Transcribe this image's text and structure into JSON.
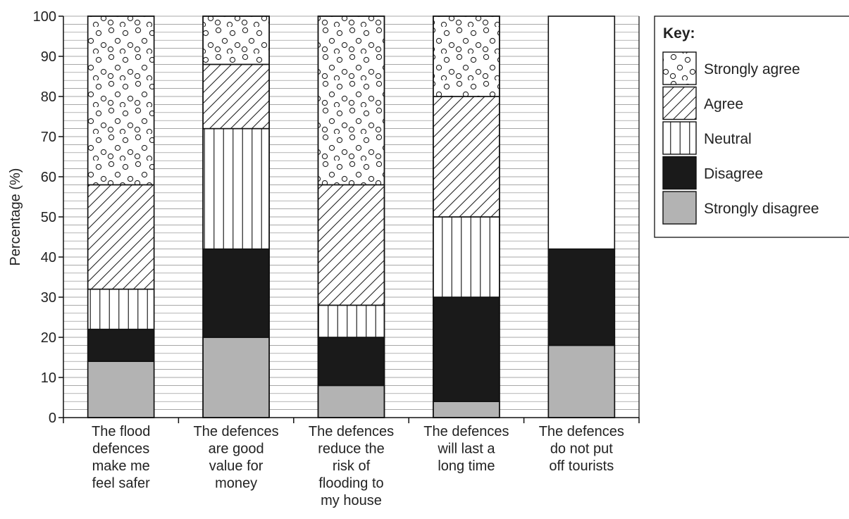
{
  "chart_data": {
    "type": "bar",
    "stacked": true,
    "ylabel": "Percentage (%)",
    "ylim": [
      0,
      100
    ],
    "yticks": [
      0,
      10,
      20,
      30,
      40,
      50,
      60,
      70,
      80,
      90,
      100
    ],
    "minor_gridline_step": 2,
    "grid": true,
    "legend_title": "Key:",
    "legend_position": "top-right",
    "categories": [
      [
        "The flood",
        "defences",
        "make me",
        "feel safer"
      ],
      [
        "The defences",
        "are good",
        "value for",
        "money"
      ],
      [
        "The defences",
        "reduce the",
        "risk of",
        "flooding to",
        "my house"
      ],
      [
        "The defences",
        "will last a",
        "long time"
      ],
      [
        "The defences",
        "do not put",
        "off tourists"
      ]
    ],
    "series": [
      {
        "name": "Strongly disagree",
        "pattern": "solid-grey",
        "color": "#b3b3b3",
        "values": [
          14,
          20,
          8,
          4,
          18
        ]
      },
      {
        "name": "Disagree",
        "pattern": "solid-black",
        "color": "#1a1a1a",
        "values": [
          8,
          22,
          12,
          26,
          24
        ]
      },
      {
        "name": "Neutral",
        "pattern": "vertical-lines",
        "color": "#ffffff",
        "values": [
          10,
          30,
          8,
          20,
          0
        ]
      },
      {
        "name": "Agree",
        "pattern": "diagonal-lines",
        "color": "#ffffff",
        "values": [
          26,
          16,
          30,
          30,
          0
        ]
      },
      {
        "name": "Strongly agree",
        "pattern": "circles",
        "color": "#ffffff",
        "values": [
          42,
          12,
          42,
          20,
          0
        ]
      }
    ],
    "remainder_color": "#ffffff"
  }
}
